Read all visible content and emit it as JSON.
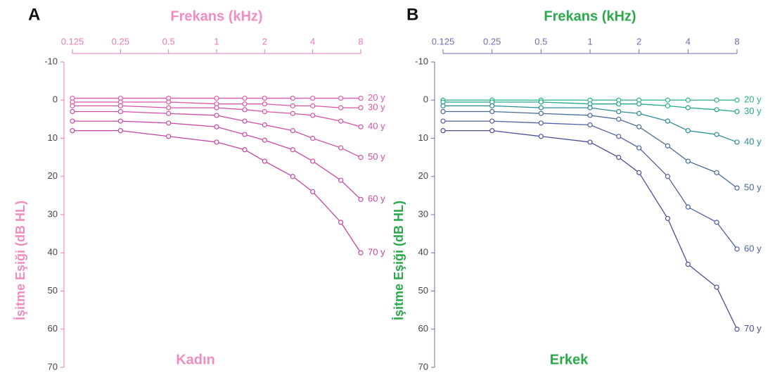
{
  "chart_data": [
    {
      "type": "line",
      "panel": "A",
      "title": "Frekans (kHz)",
      "y_label": "İşitme Eşiği (dB HL)",
      "footer": "Kadın",
      "x": [
        0.125,
        0.25,
        0.5,
        1,
        1.5,
        2,
        3,
        4,
        6,
        8
      ],
      "xscale": "log",
      "xlim": [
        0.125,
        8
      ],
      "xticks": [
        0.125,
        0.25,
        0.5,
        1,
        2,
        4,
        8
      ],
      "ylim": [
        70,
        -10
      ],
      "yticks": [
        -10,
        0,
        10,
        20,
        30,
        40,
        50,
        60,
        70
      ],
      "title_color": "#f08cc0",
      "axis_color": "#e87ab8",
      "series": [
        {
          "name": "20 y",
          "color": "#e85aa8",
          "values": [
            -0.5,
            -0.5,
            -0.5,
            -0.5,
            -0.5,
            -0.5,
            -0.5,
            -0.5,
            -0.5,
            -0.5
          ]
        },
        {
          "name": "30 y",
          "color": "#e055a6",
          "values": [
            0.5,
            0.5,
            0.5,
            1,
            1,
            1,
            1.5,
            1.5,
            2,
            2
          ]
        },
        {
          "name": "40 y",
          "color": "#d852a8",
          "values": [
            1.5,
            1.5,
            2,
            2,
            2.5,
            3,
            3.5,
            4,
            5.5,
            7
          ]
        },
        {
          "name": "50 y",
          "color": "#d04ea6",
          "values": [
            3,
            3,
            3.5,
            4,
            5.5,
            6.5,
            8,
            10,
            12.5,
            15
          ]
        },
        {
          "name": "60 y",
          "color": "#c84aa6",
          "values": [
            5.5,
            5.5,
            6,
            7,
            9,
            10.5,
            13,
            16,
            21,
            26
          ]
        },
        {
          "name": "70 y",
          "color": "#c046a4",
          "values": [
            8,
            8,
            9.5,
            11,
            13,
            16,
            20,
            24,
            32,
            40
          ]
        }
      ]
    },
    {
      "type": "line",
      "panel": "B",
      "title": "Frekans (kHz)",
      "y_label": "İşitme Eşiği (dB HL)",
      "footer": "Erkek",
      "x": [
        0.125,
        0.25,
        0.5,
        1,
        1.5,
        2,
        3,
        4,
        6,
        8
      ],
      "xscale": "log",
      "xlim": [
        0.125,
        8
      ],
      "xticks": [
        0.125,
        0.25,
        0.5,
        1,
        2,
        4,
        8
      ],
      "ylim": [
        70,
        -10
      ],
      "yticks": [
        -10,
        0,
        10,
        20,
        30,
        40,
        50,
        60,
        70
      ],
      "title_color": "#2aa84a",
      "axis_color": "#6b6fb0",
      "series": [
        {
          "name": "20 y",
          "color": "#2bb47a",
          "values": [
            0,
            0,
            0,
            0,
            0,
            0,
            0,
            0,
            0,
            0
          ]
        },
        {
          "name": "30 y",
          "color": "#23a88c",
          "values": [
            0.5,
            0.5,
            0.5,
            1,
            1,
            1,
            1.5,
            2,
            2.5,
            3
          ]
        },
        {
          "name": "40 y",
          "color": "#2a8c94",
          "values": [
            1.5,
            1.5,
            2,
            2,
            3,
            3.5,
            5.5,
            8,
            9,
            11
          ]
        },
        {
          "name": "50 y",
          "color": "#4a6a98",
          "values": [
            3,
            3,
            3.5,
            4,
            5,
            7,
            12,
            16,
            19,
            23
          ]
        },
        {
          "name": "60 y",
          "color": "#5060a0",
          "values": [
            5.5,
            5.5,
            6,
            6.5,
            9.5,
            12.5,
            20,
            28,
            32,
            39
          ]
        },
        {
          "name": "70 y",
          "color": "#4a4e98",
          "values": [
            8,
            8,
            9.5,
            11,
            15,
            19,
            31,
            43,
            49,
            60
          ]
        }
      ]
    }
  ]
}
